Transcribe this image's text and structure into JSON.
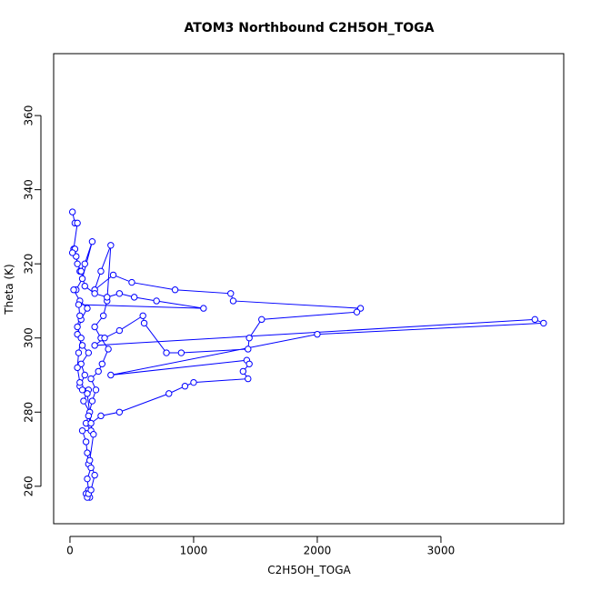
{
  "chart_data": {
    "type": "line",
    "title": "ATOM3 Northbound C2H5OH_TOGA",
    "x_label": "C2H5OH_TOGA",
    "y_label": "Theta (K)",
    "color": "#0000ff",
    "marker": "open-circle",
    "xlim": [
      -132,
      3993
    ],
    "ylim": [
      249.9,
      376.7
    ],
    "xticks": [
      0,
      1000,
      2000,
      3000
    ],
    "yticks": [
      260,
      280,
      300,
      320,
      340,
      360
    ],
    "x": [
      20,
      40,
      60,
      30,
      50,
      80,
      120,
      180,
      100,
      50,
      30,
      80,
      140,
      90,
      60,
      100,
      150,
      90,
      120,
      80,
      150,
      110,
      160,
      130,
      170,
      100,
      130,
      140,
      150,
      170,
      140,
      150,
      130,
      160,
      140,
      150,
      170,
      200,
      160,
      190,
      150,
      180,
      210,
      170,
      230,
      260,
      310,
      250,
      200,
      270,
      300,
      330,
      250,
      200,
      350,
      500,
      850,
      1300,
      1320,
      2350,
      2320,
      1550,
      1450,
      1440,
      900,
      780,
      600,
      590,
      400,
      280,
      200,
      3760,
      3830,
      2000,
      330,
      1430,
      1450,
      1400,
      1440,
      1000,
      930,
      800,
      400,
      250,
      170,
      140,
      100,
      80,
      60,
      70,
      90,
      60,
      80,
      70,
      1080,
      700,
      520,
      400,
      300,
      200,
      120,
      90,
      60,
      40,
      20
    ],
    "y": [
      334,
      331,
      331,
      324,
      322,
      318,
      320,
      326,
      316,
      313,
      313,
      310,
      308,
      305,
      301,
      298,
      296,
      293,
      290,
      287,
      286,
      283,
      280,
      277,
      275,
      275,
      272,
      269,
      266,
      265,
      262,
      259,
      258,
      257,
      257,
      258,
      259,
      263,
      267,
      274,
      279,
      283,
      286,
      289,
      291,
      293,
      297,
      300,
      303,
      306,
      310,
      325,
      318,
      313,
      317,
      315,
      313,
      312,
      310,
      308,
      307,
      305,
      300,
      297,
      296,
      296,
      304,
      306,
      302,
      300,
      298,
      305,
      304,
      301,
      290,
      294,
      293,
      291,
      289,
      288,
      287,
      285,
      280,
      279,
      277,
      285,
      286,
      288,
      292,
      296,
      300,
      303,
      306,
      309,
      308,
      310,
      311,
      312,
      311,
      312,
      314,
      318,
      320,
      324,
      323
    ]
  }
}
